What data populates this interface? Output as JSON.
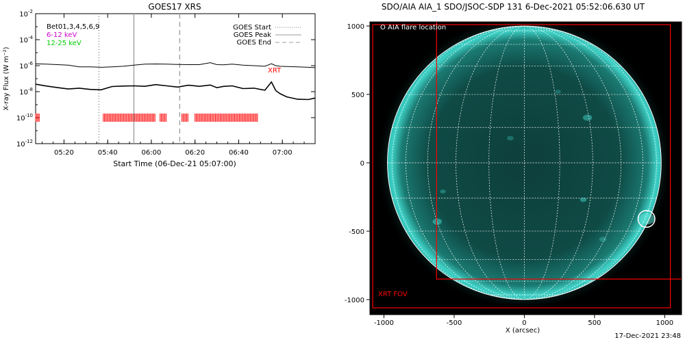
{
  "goes_panel": {
    "title": "GOES17 XRS",
    "legend_left": [
      "Bet01,3,4,5,6,9",
      "6-12 keV",
      "12-25 keV"
    ],
    "legend_left_colors": [
      "#000000",
      "#cc00cc",
      "#00cc00"
    ],
    "legend_right": [
      "GOES Start",
      "GOES Peak",
      "GOES End"
    ],
    "xrt_label": "XRT"
  },
  "aia_panel": {
    "title": "SDO/AIA AIA_1 SDO/JSOC-SDP 131  6-Dec-2021 05:52:06.630 UT",
    "flare_legend": "O AIA flare location",
    "fov_label": "XRT FOV"
  },
  "timestamp": "17-Dec-2021 23:48",
  "colors": {
    "accent_red": "#ff0000",
    "sun": "#2fbdb4",
    "grid": "#ffffff"
  },
  "chart_data": [
    {
      "type": "line",
      "title": "GOES17 XRS",
      "xlabel": "Start Time (06-Dec-21 05:07:00)",
      "ylabel": "X-ray Flux (W m⁻²)",
      "x_unit": "minutes after 05:07:00",
      "xlim": [
        0,
        128
      ],
      "x_ticks": [
        13,
        33,
        53,
        73,
        93,
        113
      ],
      "x_tick_labels": [
        "05:20",
        "05:40",
        "06:00",
        "06:20",
        "06:40",
        "07:00"
      ],
      "y_scale": "log",
      "ylim": [
        1e-12,
        0.01
      ],
      "y_tick_exponents": [
        -12,
        -10,
        -8,
        -6,
        -4,
        -2
      ],
      "series": [
        {
          "name": "",
          "color": "#000000",
          "x": [
            0,
            5,
            10,
            15,
            20,
            25,
            30,
            35,
            40,
            45,
            50,
            55,
            60,
            65,
            70,
            75,
            80,
            83,
            86,
            90,
            95,
            100,
            105,
            108,
            110,
            112,
            115,
            120,
            125,
            128
          ],
          "y": [
            1.4e-06,
            1.3e-06,
            1.2e-06,
            1.1e-06,
            8e-07,
            8e-07,
            7.5e-07,
            8e-07,
            9e-07,
            1.1e-06,
            1.3e-06,
            1.35e-06,
            1.3e-06,
            1.25e-06,
            1.2e-06,
            1.2e-06,
            1.7e-06,
            1.2e-06,
            1.15e-06,
            1.3e-06,
            1.1e-06,
            1e-06,
            9e-07,
            1.4e-06,
            1e-06,
            9e-07,
            8.5e-07,
            8e-07,
            7.5e-07,
            7e-07
          ]
        },
        {
          "name": "",
          "color": "#000000",
          "x": [
            0,
            5,
            10,
            15,
            20,
            25,
            30,
            35,
            40,
            45,
            50,
            55,
            60,
            65,
            70,
            75,
            80,
            83,
            86,
            90,
            95,
            100,
            105,
            108,
            110,
            112,
            115,
            120,
            125,
            128
          ],
          "y": [
            3e-08,
            2.5e-08,
            2.2e-08,
            2e-08,
            1.6e-08,
            1.5e-08,
            1.6e-08,
            2e-08,
            2.5e-08,
            3e-08,
            3.2e-08,
            3e-08,
            2.8e-08,
            2.6e-08,
            2.5e-08,
            2.4e-08,
            3.5e-08,
            2.5e-08,
            2.2e-08,
            2.8e-08,
            2e-08,
            1.5e-08,
            1.2e-08,
            6e-08,
            1.5e-08,
            6e-09,
            4e-09,
            3e-09,
            2e-09,
            3e-09
          ]
        }
      ],
      "markers": [
        {
          "label": "GOES Start",
          "x": 29,
          "style": "dotted",
          "color": "#777777"
        },
        {
          "label": "GOES Peak",
          "x": 45,
          "style": "solid",
          "color": "#999999"
        },
        {
          "label": "GOES End",
          "x": 66,
          "style": "dashed",
          "color": "#999999"
        }
      ],
      "coverage_y": 1e-10,
      "coverage_color": "#ff0000",
      "coverage_segments": [
        [
          0,
          2
        ],
        [
          31,
          55
        ],
        [
          57,
          60
        ],
        [
          67,
          70
        ],
        [
          73,
          102
        ]
      ]
    },
    {
      "type": "scatter",
      "title": "SDO/AIA AIA_1 SDO/JSOC-SDP 131  6-Dec-2021 05:52:06.630 UT",
      "xlabel": "X (arcsec)",
      "ylabel": "",
      "xlim": [
        -1100,
        1120
      ],
      "ylim": [
        -1110,
        1030
      ],
      "x_ticks": [
        -1000,
        -500,
        0,
        500,
        1000
      ],
      "y_ticks": [
        -1000,
        -500,
        0,
        500,
        1000
      ],
      "solar_radius": 975,
      "grid_spacing_deg": 15,
      "flare_location": {
        "x": 870,
        "y": -410,
        "radius": 95
      },
      "xrt_fov_outer": [
        [
          -1080,
          -1060
        ],
        [
          1040,
          1010
        ]
      ],
      "xrt_fov_inner": [
        [
          -625,
          -850
        ],
        [
          1120,
          1030
        ]
      ]
    }
  ]
}
